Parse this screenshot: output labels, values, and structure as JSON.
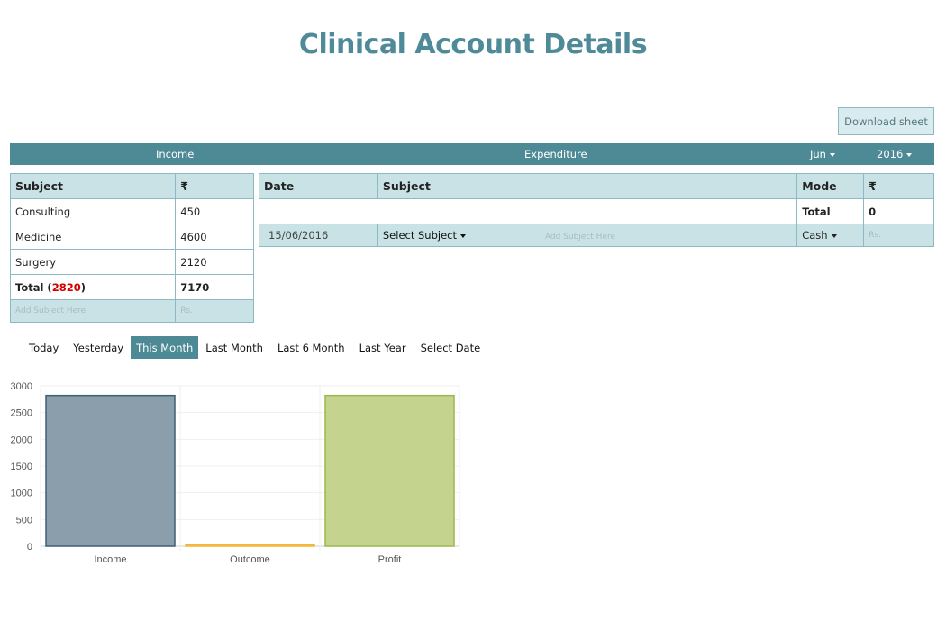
{
  "page": {
    "title": "Clinical Account Details"
  },
  "toolbar": {
    "download_label": "Download sheet"
  },
  "header": {
    "income_label": "Income",
    "expenditure_label": "Expenditure",
    "month": "Jun",
    "year": "2016"
  },
  "income": {
    "headers": [
      "Subject",
      "₹"
    ],
    "rows": [
      {
        "subject": "Consulting",
        "amount": "450"
      },
      {
        "subject": "Medicine",
        "amount": "4600"
      },
      {
        "subject": "Surgery",
        "amount": "2120"
      }
    ],
    "total_label": "Total (",
    "total_highlight": "2820",
    "total_close": ")",
    "total_value": "7170",
    "subject_placeholder": "Add Subject Here",
    "amount_placeholder": "Rs."
  },
  "expenditure": {
    "headers": [
      "Date",
      "Subject",
      "Mode",
      "₹"
    ],
    "total_label": "Total",
    "total_value": "0",
    "date_value": "15/06/2016",
    "subject_select": "Select Subject",
    "subject_placeholder": "Add Subject Here",
    "mode_select": "Cash",
    "amount_placeholder": "Rs."
  },
  "range_tabs": [
    "Today",
    "Yesterday",
    "This Month",
    "Last Month",
    "Last 6 Month",
    "Last Year",
    "Select Date"
  ],
  "active_tab": "This Month",
  "colors": {
    "accent": "#4d8a96",
    "income": "#8a9eab",
    "outcome": "#f5b73b",
    "profit": "#c4d48f"
  },
  "chart_data": {
    "type": "bar",
    "categories": [
      "Income",
      "Outcome",
      "Profit"
    ],
    "values": [
      2820,
      0,
      2820
    ],
    "yticks": [
      0,
      500,
      1000,
      1500,
      2000,
      2500,
      3000
    ],
    "ylim": [
      0,
      3000
    ],
    "title": "",
    "xlabel": "",
    "ylabel": "",
    "grid": true
  }
}
